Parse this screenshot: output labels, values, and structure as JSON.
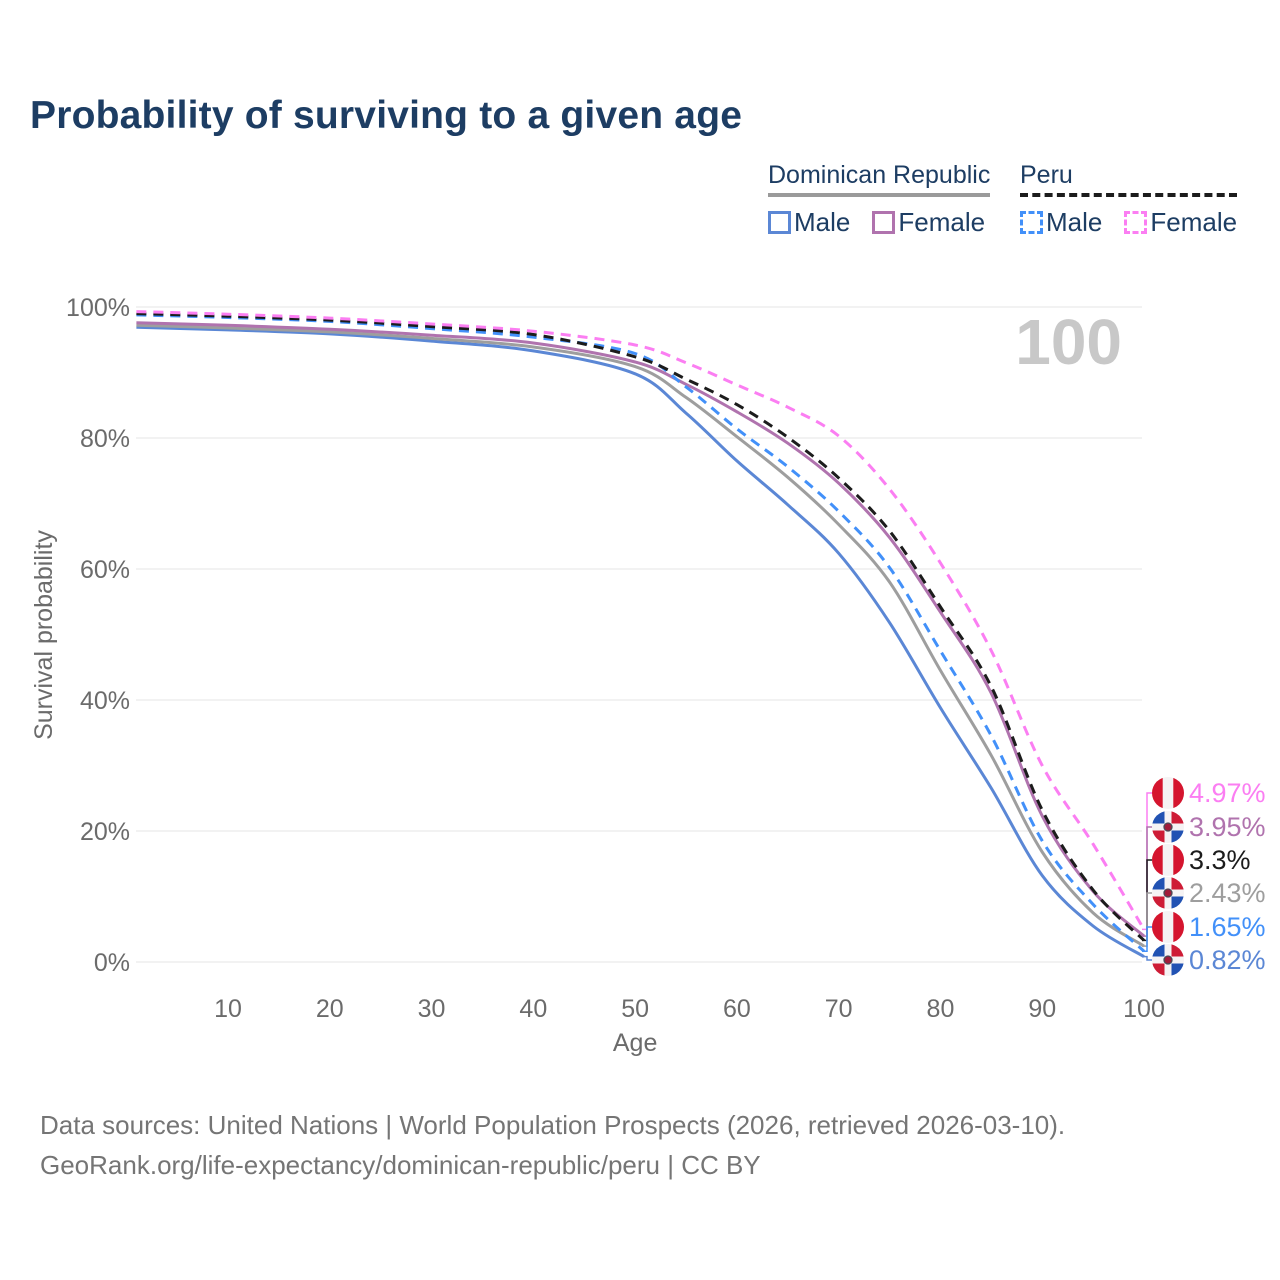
{
  "page": {
    "title": "Probability of surviving to a given age",
    "watermark_age": "100"
  },
  "legend": {
    "groups": [
      {
        "label": "Dominican Republic",
        "line_style": "solid",
        "line_color": "#9a9a9a",
        "items": [
          {
            "label": "Male",
            "color": "#5b87d5",
            "style": "solid"
          },
          {
            "label": "Female",
            "color": "#b073ae",
            "style": "solid"
          }
        ]
      },
      {
        "label": "Peru",
        "line_style": "dashed",
        "line_color": "#1c1c1c",
        "items": [
          {
            "label": "Male",
            "color": "#4290f9",
            "style": "dashed"
          },
          {
            "label": "Female",
            "color": "#fb7ef2",
            "style": "dashed"
          }
        ]
      }
    ]
  },
  "chart_data": {
    "type": "line",
    "title": "Probability of surviving to a given age",
    "xlabel": "Age",
    "ylabel": "Survival probability",
    "xlim": [
      1,
      100
    ],
    "ylim": [
      0,
      100
    ],
    "grid": "horizontal",
    "x_ticks": [
      10,
      20,
      30,
      40,
      50,
      60,
      70,
      80,
      90,
      100
    ],
    "y_tick_values": [
      0,
      20,
      40,
      60,
      80,
      100
    ],
    "y_tick_labels": [
      "0%",
      "20%",
      "40%",
      "60%",
      "80%",
      "100%"
    ],
    "ages": [
      1,
      10,
      20,
      30,
      40,
      50,
      55,
      60,
      65,
      70,
      75,
      80,
      85,
      90,
      95,
      100
    ],
    "series": [
      {
        "id": "dominican-republic-male",
        "name": "Dominican Republic — Male",
        "country": "Dominican Republic",
        "sex": "Male",
        "flag": "do",
        "color": "#5b87d5",
        "dash": false,
        "end_label": "0.82%",
        "end_value": 0.82,
        "values": [
          96.9,
          96.5,
          95.9,
          94.8,
          93.3,
          89.8,
          83.8,
          76.5,
          69.8,
          62.4,
          51.8,
          38.8,
          26.5,
          13.2,
          5.5,
          0.82
        ]
      },
      {
        "id": "dominican-republic-total",
        "name": "Dominican Republic — Both sexes",
        "country": "Dominican Republic",
        "sex": "Both",
        "flag": "do",
        "color": "#9e9e9e",
        "dash": false,
        "end_label": "2.43%",
        "end_value": 2.43,
        "values": [
          97.2,
          96.8,
          96.2,
          95.2,
          93.9,
          90.9,
          86.2,
          80.2,
          74.0,
          66.8,
          58.0,
          44.5,
          31.5,
          16.8,
          7.5,
          2.43
        ]
      },
      {
        "id": "dominican-republic-female",
        "name": "Dominican Republic — Female",
        "country": "Dominican Republic",
        "sex": "Female",
        "flag": "do",
        "color": "#b073ae",
        "dash": false,
        "end_label": "3.95%",
        "end_value": 3.95,
        "values": [
          97.6,
          97.2,
          96.6,
          95.7,
          94.5,
          91.6,
          88.2,
          84.0,
          79.2,
          73.1,
          64.8,
          53.4,
          41.0,
          22.3,
          10.8,
          3.95
        ]
      },
      {
        "id": "peru-male",
        "name": "Peru — Male",
        "country": "Peru",
        "sex": "Male",
        "flag": "pe",
        "color": "#4290f9",
        "dash": true,
        "end_label": "1.65%",
        "end_value": 1.65,
        "values": [
          98.8,
          98.4,
          97.8,
          96.7,
          95.4,
          92.9,
          87.8,
          81.4,
          75.6,
          68.8,
          60.2,
          47.5,
          34.5,
          18.5,
          8.8,
          1.65
        ]
      },
      {
        "id": "peru-total",
        "name": "Peru — Both sexes",
        "country": "Peru",
        "sex": "Both",
        "flag": "pe",
        "color": "#1c1c1c",
        "dash": true,
        "end_label": "3.3%",
        "end_value": 3.3,
        "values": [
          99.0,
          98.6,
          98.0,
          97.0,
          95.8,
          92.4,
          89.0,
          85.1,
          80.1,
          73.9,
          65.8,
          54.2,
          42.0,
          23.2,
          11.0,
          3.3
        ]
      },
      {
        "id": "peru-female",
        "name": "Peru — Female",
        "country": "Peru",
        "sex": "Female",
        "flag": "pe",
        "color": "#fb7ef2",
        "dash": true,
        "end_label": "4.97%",
        "end_value": 4.97,
        "values": [
          99.3,
          98.9,
          98.3,
          97.4,
          96.3,
          94.2,
          91.5,
          88.1,
          84.7,
          80.3,
          72.2,
          60.9,
          47.5,
          30.0,
          18.0,
          4.97
        ]
      }
    ]
  },
  "flag_colors": {
    "pe": {
      "red": "#d5152e",
      "white": "#f5f3f4"
    },
    "do": {
      "blue": "#2152b3",
      "red": "#ce1c36",
      "white": "#f5f3f4",
      "emblem": "#a11c3a",
      "emblem_ring": "#4a4a56"
    }
  },
  "style": {
    "grid_color": "#ededed",
    "axis_text_color": "#6b6b6b",
    "watermark_color": "#c8c8c8",
    "title_color": "#1d3d63"
  },
  "footer": {
    "line1": "Data sources: United Nations | World Population Prospects (2026, retrieved 2026-03-10).",
    "line2": "GeoRank.org/life-expectancy/dominican-republic/peru | CC BY"
  }
}
